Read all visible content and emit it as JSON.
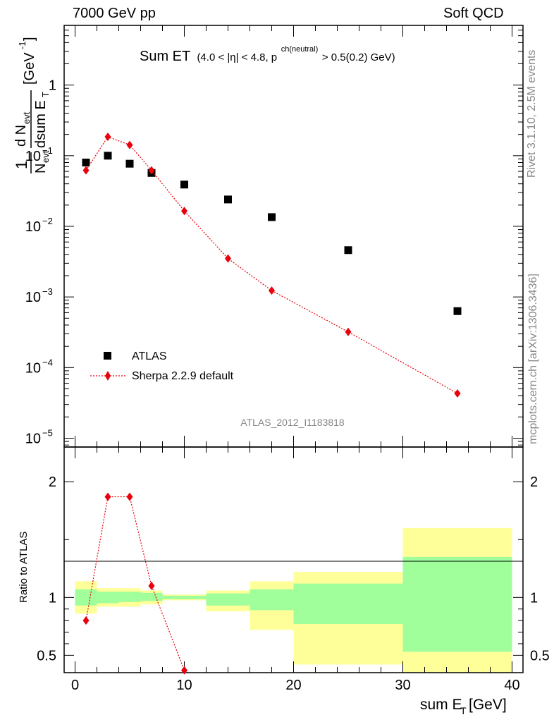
{
  "header": {
    "left": "7000 GeV pp",
    "right": "Soft QCD"
  },
  "side_labels": {
    "rivet": "Rivet 3.1.10,  2.5M events",
    "mcplots": "mcplots.cern.ch [arXiv:1306.3436]"
  },
  "chart_data": [
    {
      "type": "scatter",
      "panel": "main",
      "title": "Sum ET",
      "title_cut": "(4.0 < |η| < 4.8, p",
      "title_cut_sup": "ch(neutral)",
      "title_cut_tail": " > 0.5(0.2) GeV)",
      "ylabel": "1/N_evt dN_evt/dsum E_T [GeV^-1]",
      "yscale": "log",
      "ylim": [
        7.5e-06,
        7
      ],
      "xlim": [
        -1,
        41
      ],
      "ytick_labels": [
        "1",
        "10",
        "10",
        "10",
        "10",
        "10"
      ],
      "ytick_exponents": [
        "",
        "−1",
        "−2",
        "−3",
        "−4",
        "−5"
      ],
      "analysis_label": "ATLAS_2012_I1183818",
      "legend_position": "bottom-left",
      "series": [
        {
          "name": "ATLAS",
          "marker": "square",
          "color": "#000000",
          "x": [
            1,
            3,
            5,
            7,
            10,
            14,
            18,
            25,
            35
          ],
          "y": [
            0.08,
            0.1,
            0.077,
            0.057,
            0.039,
            0.024,
            0.0135,
            0.0046,
            0.00063
          ]
        },
        {
          "name": "Sherpa 2.2.9 default",
          "marker": "diamond",
          "line": "dotted",
          "color": "#e8000b",
          "x": [
            1,
            3,
            5,
            7,
            10,
            14,
            18,
            25,
            35
          ],
          "y": [
            0.062,
            0.185,
            0.142,
            0.062,
            0.0165,
            0.0035,
            0.00123,
            0.00032,
            4.3e-05
          ]
        }
      ]
    },
    {
      "type": "line",
      "panel": "ratio",
      "ylabel": "Ratio to ATLAS",
      "xlabel": "sum E_T [GeV]",
      "xlim": [
        -1,
        41
      ],
      "ylim": [
        0.35,
        2.3
      ],
      "xtick_labels": [
        "0",
        "10",
        "20",
        "30",
        "40"
      ],
      "ytick_labels": [
        "0.5",
        "1",
        "2"
      ],
      "bands": [
        {
          "x0": 0,
          "x1": 2,
          "stat": [
            0.93,
            1.07
          ],
          "total": [
            0.86,
            1.14
          ]
        },
        {
          "x0": 2,
          "x1": 4,
          "stat": [
            0.95,
            1.05
          ],
          "total": [
            0.92,
            1.08
          ]
        },
        {
          "x0": 4,
          "x1": 6,
          "stat": [
            0.96,
            1.05
          ],
          "total": [
            0.92,
            1.08
          ]
        },
        {
          "x0": 6,
          "x1": 8,
          "stat": [
            0.97,
            1.04
          ],
          "total": [
            0.94,
            1.06
          ]
        },
        {
          "x0": 8,
          "x1": 12,
          "stat": [
            0.985,
            1.015
          ],
          "total": [
            0.975,
            1.025
          ]
        },
        {
          "x0": 12,
          "x1": 16,
          "stat": [
            0.93,
            1.035
          ],
          "total": [
            0.88,
            1.06
          ]
        },
        {
          "x0": 16,
          "x1": 20,
          "stat": [
            0.89,
            1.07
          ],
          "total": [
            0.72,
            1.14
          ]
        },
        {
          "x0": 20,
          "x1": 30,
          "stat": [
            0.77,
            1.12
          ],
          "total": [
            0.42,
            1.22
          ]
        },
        {
          "x0": 30,
          "x1": 40,
          "stat": [
            0.53,
            1.35
          ],
          "total": [
            0.35,
            1.6
          ]
        }
      ],
      "series": [
        {
          "name": "Sherpa 2.2.9 default / ATLAS",
          "marker": "diamond",
          "line": "dotted",
          "color": "#e8000b",
          "x": [
            1,
            3,
            5,
            7,
            10
          ],
          "y": [
            0.8,
            1.87,
            1.87,
            1.1,
            0.37
          ]
        }
      ]
    }
  ],
  "colors": {
    "stat_band": "#a0ff9a",
    "total_band": "#ffff9a",
    "data": "#000000",
    "mc": "#e8000b",
    "analysis_label": "#888888"
  }
}
